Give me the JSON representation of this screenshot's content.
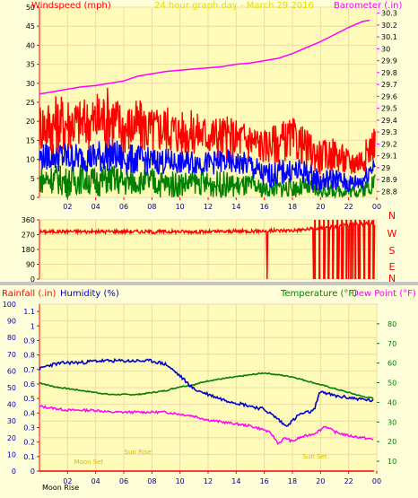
{
  "chart_data": [
    {
      "type": "line",
      "title": "24 hour graph day - March 29 2016",
      "left_axis_label": "Windspeed (mph)",
      "right_axis_label": "Barometer (.in)",
      "x_ticks": [
        "02",
        "04",
        "06",
        "08",
        "10",
        "12",
        "14",
        "16",
        "18",
        "20",
        "22",
        "00"
      ],
      "ylim_left": [
        0,
        50
      ],
      "y_ticks_left": [
        "0",
        "5",
        "10",
        "15",
        "20",
        "25",
        "30",
        "35",
        "40",
        "45",
        "50"
      ],
      "ylim_right": [
        28.75,
        30.35
      ],
      "y_ticks_right": [
        "28.8",
        "28.9",
        "29",
        "29.1",
        "29.2",
        "29.3",
        "29.4",
        "29.5",
        "29.6",
        "29.7",
        "29.8",
        "29.9",
        "30",
        "30.1",
        "30.2",
        "30.3"
      ],
      "series": [
        {
          "name": "Barometer",
          "color": "#ff00ff",
          "axis": "right",
          "x": [
            0,
            1,
            2,
            3,
            4,
            5,
            6,
            7,
            8,
            9,
            10,
            11,
            12,
            13,
            14,
            15,
            16,
            17,
            18,
            19,
            20,
            21,
            22,
            23,
            23.5
          ],
          "y": [
            29.62,
            29.64,
            29.66,
            29.68,
            29.69,
            29.71,
            29.73,
            29.77,
            29.79,
            29.81,
            29.82,
            29.83,
            29.84,
            29.85,
            29.87,
            29.88,
            29.9,
            29.92,
            29.96,
            30.01,
            30.06,
            30.12,
            30.18,
            30.23,
            30.24
          ]
        },
        {
          "name": "Wind gust",
          "color": "#ff0000",
          "axis": "left",
          "x": [
            0,
            1,
            2,
            3,
            4,
            5,
            6,
            7,
            8,
            9,
            10,
            11,
            12,
            13,
            14,
            15,
            16,
            17,
            18,
            19,
            20,
            21,
            22,
            23,
            23.8
          ],
          "low": [
            12,
            11,
            12,
            13,
            12,
            13,
            11,
            12,
            11,
            12,
            11,
            11,
            11,
            10,
            10,
            9,
            9,
            9,
            10,
            8,
            6,
            7,
            5,
            6,
            10
          ],
          "high": [
            26,
            27,
            28,
            26,
            28,
            30,
            25,
            26,
            24,
            25,
            23,
            23,
            22,
            22,
            21,
            21,
            18,
            20,
            21,
            18,
            15,
            16,
            13,
            14,
            19
          ]
        },
        {
          "name": "Average wind",
          "color": "#0000ff",
          "axis": "left",
          "x": [
            0,
            1,
            2,
            3,
            4,
            5,
            6,
            7,
            8,
            9,
            10,
            11,
            12,
            13,
            14,
            15,
            16,
            17,
            18,
            19,
            20,
            21,
            22,
            23,
            23.8
          ],
          "low": [
            7,
            7,
            6,
            7,
            6,
            7,
            6,
            6,
            6,
            6,
            6,
            6,
            6,
            6,
            6,
            5,
            2,
            3,
            4,
            3,
            1,
            2,
            1,
            2,
            6
          ],
          "high": [
            14,
            15,
            15,
            14,
            15,
            16,
            14,
            14,
            13,
            13,
            12,
            13,
            12,
            13,
            12,
            12,
            9,
            10,
            10,
            10,
            7,
            8,
            6,
            7,
            12
          ]
        },
        {
          "name": "Wind speed",
          "color": "#008000",
          "axis": "left",
          "x": [
            0,
            1,
            2,
            3,
            4,
            5,
            6,
            7,
            8,
            9,
            10,
            11,
            12,
            13,
            14,
            15,
            16,
            17,
            18,
            19,
            20,
            21,
            22,
            23,
            23.8
          ],
          "low": [
            1,
            1,
            0,
            1,
            0,
            1,
            0,
            1,
            0,
            0,
            0,
            1,
            0,
            0,
            0,
            0,
            0,
            0,
            0,
            0,
            0,
            0,
            0,
            0,
            1
          ],
          "high": [
            8,
            9,
            8,
            9,
            8,
            9,
            8,
            7,
            8,
            7,
            7,
            7,
            7,
            7,
            6,
            6,
            4,
            5,
            5,
            5,
            3,
            4,
            3,
            4,
            7
          ]
        }
      ]
    },
    {
      "type": "line",
      "ylim": [
        0,
        360
      ],
      "y_ticks": [
        "0",
        "90",
        "180",
        "270",
        "360"
      ],
      "compass_labels": [
        "N",
        "W",
        "S",
        "E",
        "N"
      ],
      "series": [
        {
          "name": "Wind direction",
          "color": "#ff0000",
          "x": [
            0,
            2,
            4,
            6,
            8,
            10,
            12,
            14,
            16,
            18,
            19.5,
            20,
            21,
            22,
            23,
            23.9
          ],
          "y": [
            287,
            290,
            288,
            290,
            287,
            289,
            287,
            290,
            293,
            296,
            305,
            310,
            320,
            330,
            335,
            340
          ],
          "drops_to_zero_at": [
            16.2,
            19.5,
            20.3,
            20.6,
            20.9,
            21.3,
            21.6,
            22,
            22.3,
            22.7,
            23.1,
            23.5,
            23.8
          ]
        }
      ]
    },
    {
      "type": "line",
      "rainfall_label": "Rainfall (.in)",
      "humidity_label": "Humidity (%)",
      "temperature_label": "Temperature (°F)",
      "dew_point_label": "Dew Point (°F)",
      "x_ticks": [
        "02",
        "04",
        "06",
        "08",
        "10",
        "12",
        "14",
        "16",
        "18",
        "20",
        "22",
        "00"
      ],
      "ylim_humidity": [
        0,
        100
      ],
      "y_ticks_humidity": [
        "0",
        "10",
        "20",
        "30",
        "40",
        "50",
        "60",
        "70",
        "80",
        "90",
        "100"
      ],
      "ylim_rain": [
        0,
        1.15
      ],
      "y_ticks_rain": [
        "0",
        "0.1",
        "0.2",
        "0.3",
        "0.4",
        "0.5",
        "0.6",
        "0.7",
        "0.8",
        "0.9",
        "1",
        "1.1"
      ],
      "ylim_temp": [
        5,
        90
      ],
      "y_ticks_temp": [
        "10",
        "20",
        "30",
        "40",
        "50",
        "60",
        "70",
        "80"
      ],
      "moon_label": "Moon Rise",
      "event_labels": [
        {
          "text": "Moon Set",
          "x": 3.5
        },
        {
          "text": "Sun Rise",
          "x": 7.0
        },
        {
          "text": "Sun Set",
          "x": 19.6
        }
      ],
      "series": [
        {
          "name": "Humidity",
          "color": "#0000cc",
          "axis": "humidity",
          "x": [
            0,
            0.5,
            1,
            2,
            3,
            4,
            5,
            6,
            7,
            8,
            9,
            10,
            11,
            12,
            13,
            14,
            15,
            16,
            17,
            17.5,
            18,
            18.5,
            19,
            19.5,
            20,
            20.3,
            21,
            22,
            23,
            23.8
          ],
          "y": [
            61,
            63,
            64,
            65,
            65,
            66,
            66,
            66,
            66,
            66,
            64,
            57,
            49,
            46,
            43,
            41,
            39,
            37,
            31,
            27,
            30,
            34,
            35,
            36,
            48,
            47,
            45,
            44,
            43,
            42
          ]
        },
        {
          "name": "Temperature",
          "color": "#008000",
          "axis": "temp",
          "x": [
            0,
            1,
            2,
            3,
            4,
            5,
            6,
            7,
            8,
            9,
            10,
            11,
            12,
            13,
            14,
            15,
            16,
            17,
            18,
            19,
            20,
            21,
            22,
            23,
            23.8
          ],
          "y": [
            50,
            48,
            47,
            46,
            45,
            44,
            44,
            44,
            45,
            46,
            48,
            49,
            51,
            52,
            53,
            54,
            55,
            54,
            53,
            51,
            49,
            47,
            45,
            43,
            42
          ]
        },
        {
          "name": "Dew Point",
          "color": "#ff00ff",
          "axis": "temp",
          "x": [
            0,
            1,
            2,
            3,
            4,
            5,
            6,
            7,
            8,
            9,
            10,
            11,
            12,
            13,
            14,
            15,
            16,
            16.5,
            17,
            17.5,
            18,
            18.5,
            19,
            19.5,
            20,
            20.3,
            21,
            22,
            23,
            23.8
          ],
          "y": [
            38,
            37,
            36,
            36,
            36,
            35,
            35,
            35,
            35,
            35,
            34,
            33,
            31,
            30,
            29,
            28,
            26,
            24,
            19,
            22,
            20,
            22,
            23,
            24,
            26,
            28,
            25,
            23,
            22,
            21
          ]
        },
        {
          "name": "Rainfall",
          "color": "#ff0000",
          "axis": "rain",
          "x": [
            0,
            23.8
          ],
          "y": [
            0,
            0
          ]
        }
      ]
    }
  ]
}
